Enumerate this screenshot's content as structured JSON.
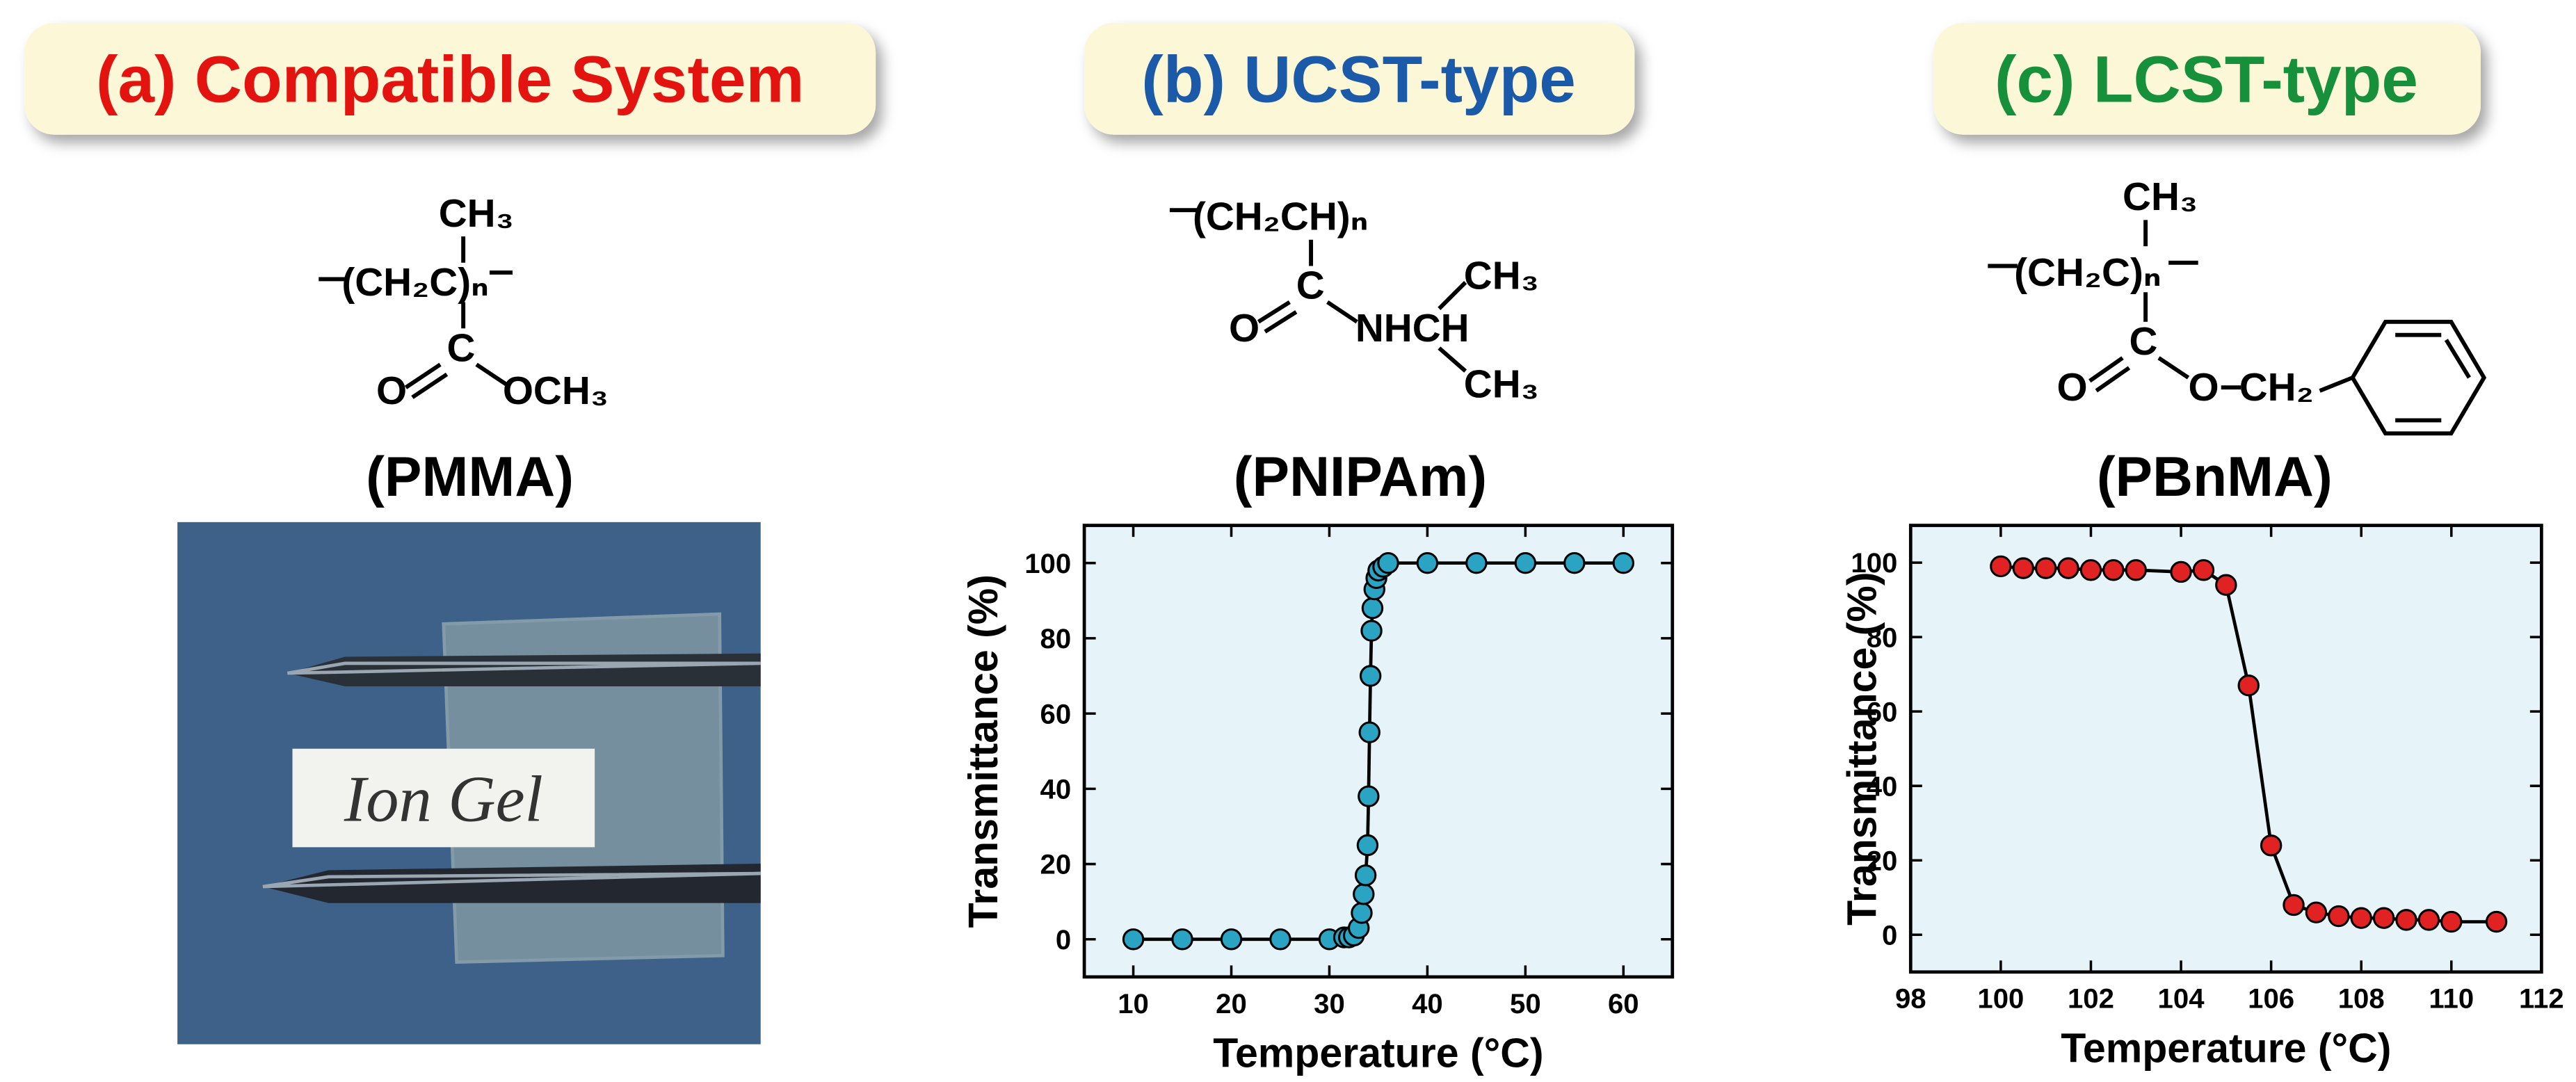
{
  "panels": [
    {
      "title": "(a) Compatible System",
      "color": "#e3140f",
      "polymer": "(PMMA)",
      "structure": [
        "CH₃",
        "(CH₂C)ₙ",
        "C",
        "O",
        "OCH₃"
      ]
    },
    {
      "title": "(b) UCST-type",
      "color": "#1a5aa8",
      "polymer": "(PNIPAm)",
      "structure": [
        "(CH₂CH)ₙ",
        "C",
        "O",
        "NHCH",
        "CH₃",
        "CH₃"
      ]
    },
    {
      "title": "(c) LCST-type",
      "color": "#16903a",
      "polymer": "(PBnMA)",
      "structure": [
        "CH₃",
        "(CH₂C)ₙ",
        "C",
        "O",
        "O",
        "CH₂"
      ]
    }
  ],
  "photo": {
    "label": "Ion Gel"
  },
  "chart_data": [
    {
      "type": "line",
      "x_label": "Temperature (°C)",
      "y_label": "Transmittance (%)",
      "x": [
        10,
        15,
        20,
        25,
        30,
        31.5,
        32,
        32.5,
        33,
        33.3,
        33.5,
        33.7,
        33.9,
        34,
        34.1,
        34.2,
        34.3,
        34.4,
        34.6,
        34.8,
        35,
        35.5,
        36,
        40,
        45,
        50,
        55,
        60
      ],
      "values": [
        0,
        0,
        0,
        0,
        0,
        0.5,
        0.5,
        1,
        3,
        7,
        12,
        17,
        25,
        38,
        55,
        70,
        82,
        88,
        93,
        96,
        98,
        99,
        100,
        100,
        100,
        100,
        100,
        100
      ],
      "color": "#2ba3c3",
      "background": "#e6f3f9",
      "xlim": [
        5,
        65
      ],
      "xticks": [
        10,
        20,
        30,
        40,
        50,
        60
      ],
      "ylim": [
        -10,
        110
      ],
      "yticks": [
        0,
        20,
        40,
        60,
        80,
        100
      ]
    },
    {
      "type": "line",
      "x_label": "Temperature (°C)",
      "y_label": "Transmittance (%)",
      "x": [
        100,
        100.5,
        101,
        101.5,
        102,
        102.5,
        103,
        104,
        104.5,
        105,
        105.5,
        106,
        106.5,
        107,
        107.5,
        108,
        108.5,
        109,
        109.5,
        110,
        111
      ],
      "values": [
        99,
        98.5,
        98.5,
        98.5,
        98,
        98,
        98,
        97.5,
        98,
        94,
        67,
        24,
        8,
        6,
        5,
        4.5,
        4.5,
        4,
        4,
        3.5,
        3.5
      ],
      "color": "#e02222",
      "background": "#e6f3f9",
      "xlim": [
        98,
        112
      ],
      "xticks": [
        98,
        100,
        102,
        104,
        106,
        108,
        110,
        112
      ],
      "ylim": [
        -10,
        110
      ],
      "yticks": [
        0,
        20,
        40,
        60,
        80,
        100
      ]
    }
  ]
}
